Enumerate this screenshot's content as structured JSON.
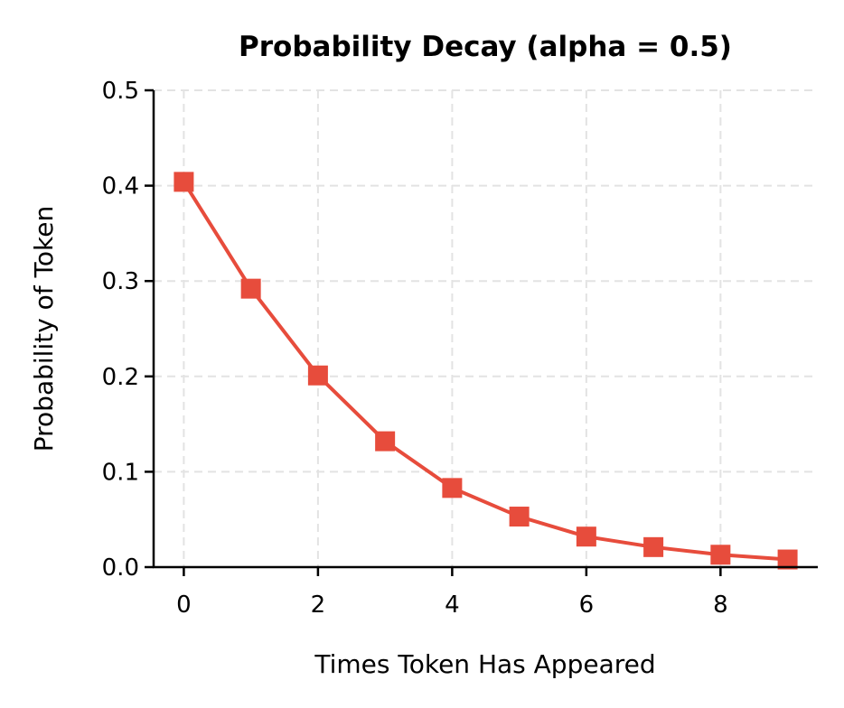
{
  "chart_data": {
    "type": "line",
    "title": "Probability Decay (alpha = 0.5)",
    "xlabel": "Times Token Has Appeared",
    "ylabel": "Probability of Token",
    "x": [
      0,
      1,
      2,
      3,
      4,
      5,
      6,
      7,
      8,
      9
    ],
    "series": [
      {
        "name": "Probability",
        "values": [
          0.404,
          0.292,
          0.201,
          0.132,
          0.083,
          0.053,
          0.032,
          0.021,
          0.013,
          0.008
        ],
        "color": "#e74c3c",
        "marker": "square"
      }
    ],
    "xticks": [
      0,
      2,
      4,
      6,
      8
    ],
    "xtick_labels": [
      "0",
      "2",
      "4",
      "6",
      "8"
    ],
    "yticks": [
      0.0,
      0.1,
      0.2,
      0.3,
      0.4,
      0.5
    ],
    "ytick_labels": [
      "0.0",
      "0.1",
      "0.2",
      "0.3",
      "0.4",
      "0.5"
    ],
    "xlim": [
      -0.45,
      9.45
    ],
    "ylim": [
      0.0,
      0.5
    ],
    "grid": true,
    "legend": false
  }
}
